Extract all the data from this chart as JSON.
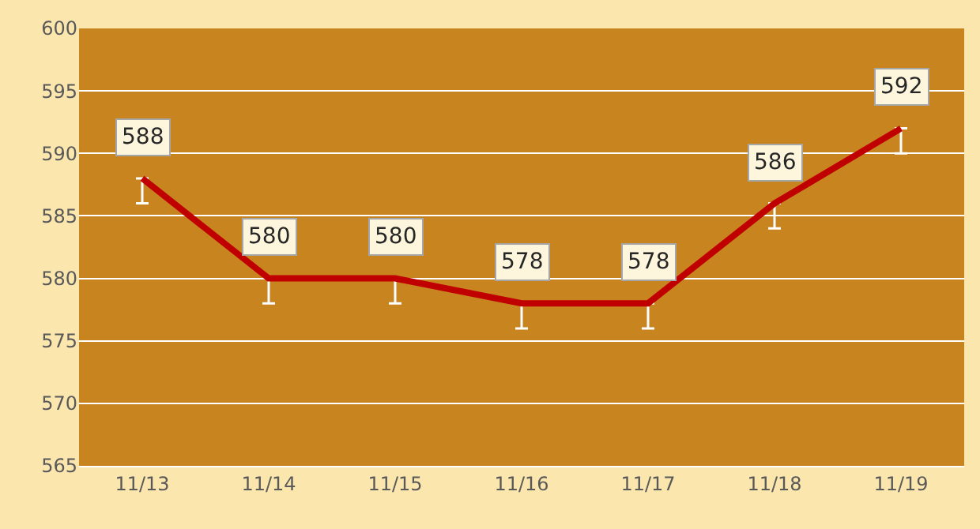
{
  "chart_data": {
    "type": "line",
    "categories": [
      "11/13",
      "11/14",
      "11/15",
      "11/16",
      "11/17",
      "11/18",
      "11/19"
    ],
    "series": [
      {
        "color": "#c00000",
        "values": [
          588,
          580,
          580,
          578,
          578,
          586,
          592
        ],
        "errors": [
          [
            586,
            588
          ],
          [
            578,
            580
          ],
          [
            578,
            580
          ],
          [
            576,
            578
          ],
          [
            576,
            578
          ],
          [
            584,
            586
          ],
          [
            590,
            592
          ]
        ]
      }
    ],
    "ylim": [
      565,
      600
    ],
    "yticks": [
      565,
      570,
      575,
      580,
      585,
      590,
      595,
      600
    ],
    "grid": "y",
    "data_labels": true,
    "marker": "none",
    "line_style": "solid"
  }
}
